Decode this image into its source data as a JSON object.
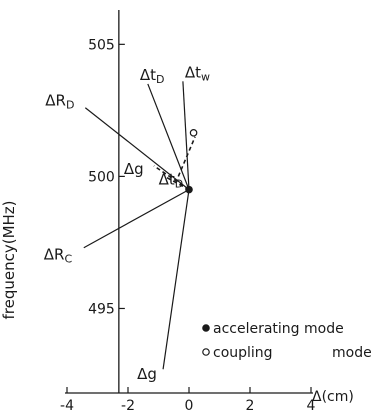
{
  "chart_data": {
    "type": "line",
    "title": "",
    "xlabel": "Δ(cm)",
    "ylabel": "frequency(MHz)",
    "xlim": [
      -4,
      4
    ],
    "ylim": [
      491.8,
      506.3
    ],
    "x_ticks": [
      -4,
      -2,
      0,
      2,
      4
    ],
    "x_tick_labels": [
      "-4",
      "-2",
      "0",
      "2",
      "4"
    ],
    "y_ticks": [
      495,
      500,
      505
    ],
    "y_tick_labels": [
      "495",
      "500",
      "505"
    ],
    "grid": false,
    "legend": {
      "placement": "bottom-right"
    },
    "origin_point": {
      "x": 0.0,
      "y": 499.5
    },
    "series": [
      {
        "name": "Δt_w",
        "style": "solid",
        "points": [
          [
            0.0,
            499.5
          ],
          [
            -0.2,
            503.6
          ]
        ],
        "label_base": "Δt",
        "label_sub": "w"
      },
      {
        "name": "Δt_D",
        "style": "solid",
        "points": [
          [
            0.0,
            499.5
          ],
          [
            -1.35,
            503.5
          ]
        ],
        "label_base": "Δt",
        "label_sub": "D"
      },
      {
        "name": "ΔR_D",
        "style": "solid",
        "points": [
          [
            0.0,
            499.5
          ],
          [
            -3.4,
            502.6
          ]
        ],
        "label_base": "ΔR",
        "label_sub": "D"
      },
      {
        "name": "ΔR_C",
        "style": "solid",
        "points": [
          [
            0.0,
            499.5
          ],
          [
            -3.45,
            497.3
          ]
        ],
        "label_base": "ΔR",
        "label_sub": "C"
      },
      {
        "name": "Δg",
        "style": "solid",
        "points": [
          [
            0.0,
            499.5
          ],
          [
            -0.85,
            492.7
          ]
        ],
        "label_base": "Δg",
        "label_sub": ""
      },
      {
        "name": "Δg (coupling)",
        "style": "dashed",
        "points": [
          [
            0.0,
            499.5
          ],
          [
            -1.15,
            500.4
          ]
        ],
        "label_base": "Δg",
        "label_sub": ""
      },
      {
        "name": "Δt_D (coupling)",
        "style": "dashed",
        "points": [
          [
            0.0,
            499.5
          ],
          [
            -0.8,
            500.0
          ]
        ],
        "label_base": "Δt",
        "label_sub": "D"
      },
      {
        "name": "coupling mode",
        "style": "dashed",
        "points": [
          [
            -0.35,
            500.0
          ],
          [
            0.2,
            501.5
          ]
        ],
        "label_base": "",
        "label_sub": ""
      }
    ],
    "markers": [
      {
        "kind": "filled",
        "x": 0.0,
        "y": 499.5
      },
      {
        "kind": "open",
        "x": 0.15,
        "y": 501.65
      }
    ],
    "legend_entries": [
      {
        "marker": "filled",
        "label": "accelerating mode"
      },
      {
        "marker": "open",
        "label": "coupling",
        "label2": "mode"
      }
    ]
  }
}
